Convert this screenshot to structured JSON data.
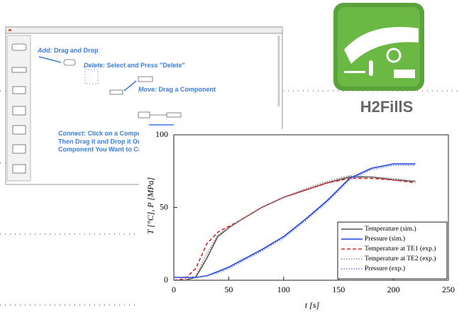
{
  "app": {
    "instructions": [
      {
        "keyword": "Add:",
        "text": " Drag and Drop"
      },
      {
        "keyword": "Delete:",
        "text": " Select and Press \"Delete\""
      },
      {
        "keyword": "Move:",
        "text": " Drag a Component"
      }
    ],
    "connect": {
      "keyword": "Connect:",
      "lines": [
        " Click on a Compone",
        "Then Drag it and Drop it Onto",
        "Component You Want to Con"
      ]
    }
  },
  "logo": {
    "name": "H2FillS"
  },
  "chart_data": {
    "type": "line",
    "xlabel": "t [s]",
    "ylabel": "T [°C], P [MPa]",
    "x": [
      0,
      10,
      20,
      30,
      40,
      50,
      60,
      80,
      100,
      120,
      140,
      160,
      180,
      200,
      220
    ],
    "xlim": [
      0,
      250
    ],
    "xticks": [
      0,
      50,
      100,
      150,
      200,
      250
    ],
    "ylim": [
      0,
      100
    ],
    "yticks": [
      0,
      50,
      100
    ],
    "legend": "lower right",
    "series": [
      {
        "name": "Temperature (sim.)",
        "color": "#555555",
        "dash": "solid",
        "values": [
          0,
          0,
          2,
          15,
          30,
          36,
          41,
          50,
          57,
          62,
          67,
          71,
          71,
          69,
          68
        ]
      },
      {
        "name": "Pressure (sim.)",
        "color": "#2040e0",
        "dash": "solid",
        "values": [
          2,
          2,
          2,
          3,
          6,
          9,
          13,
          21,
          30,
          42,
          55,
          70,
          77,
          80,
          80
        ]
      },
      {
        "name": "Temperature at TE1 (exp.)",
        "color": "#e02020",
        "dash": "dashed",
        "values": [
          0,
          1,
          8,
          25,
          33,
          37,
          41,
          50,
          57,
          62,
          67,
          70,
          70,
          69,
          67
        ]
      },
      {
        "name": "Temperature at TE2 (exp.)",
        "color": "#888888",
        "dash": "dotted",
        "values": [
          0,
          0,
          3,
          18,
          31,
          36,
          41,
          50,
          57,
          63,
          68,
          72,
          71,
          70,
          68
        ]
      },
      {
        "name": "Pressure (exp.)",
        "color": "#6080ff",
        "dash": "dotted",
        "values": [
          2,
          2,
          2,
          3,
          5,
          8,
          12,
          20,
          29,
          41,
          54,
          69,
          76,
          79,
          79
        ]
      }
    ]
  }
}
